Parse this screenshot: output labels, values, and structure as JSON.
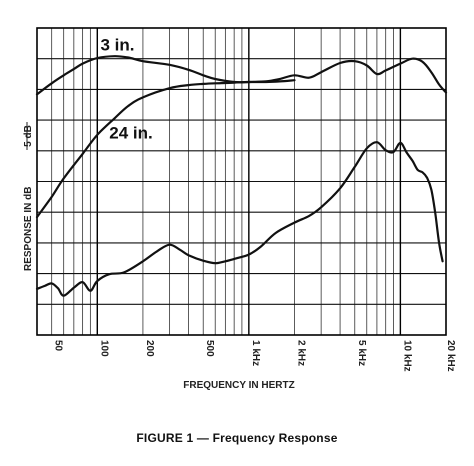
{
  "caption": "FIGURE 1 — Frequency Response",
  "chart_data": {
    "type": "line",
    "xlabel": "FREQUENCY IN HERTZ",
    "ylabel": "RESPONSE IN dB",
    "scale_label": "5 dB",
    "x_scale": "log",
    "xlim": [
      40,
      20000
    ],
    "ylim": [
      -50,
      0
    ],
    "grid": true,
    "x_ticks": [
      {
        "value": 50,
        "label": "50"
      },
      {
        "value": 100,
        "label": "100"
      },
      {
        "value": 200,
        "label": "200"
      },
      {
        "value": 500,
        "label": "500"
      },
      {
        "value": 1000,
        "label": "1 kHz"
      },
      {
        "value": 2000,
        "label": "2 kHz"
      },
      {
        "value": 5000,
        "label": "5 kHz"
      },
      {
        "value": 10000,
        "label": "10 kHz"
      },
      {
        "value": 20000,
        "label": "20 kHz"
      }
    ],
    "series": [
      {
        "name": "3 in.",
        "x": [
          40,
          50,
          60,
          70,
          80,
          100,
          130,
          160,
          200,
          300,
          400,
          500,
          600,
          800,
          1000,
          1300,
          1600,
          2000,
          2500,
          3000,
          4000,
          5000,
          6000,
          7000,
          8000,
          10000,
          12000,
          14000,
          16000,
          18000,
          20000
        ],
        "y": [
          -10.8,
          -9.0,
          -7.7,
          -6.7,
          -5.8,
          -4.9,
          -4.6,
          -4.8,
          -5.4,
          -6.0,
          -6.8,
          -7.7,
          -8.3,
          -8.8,
          -8.8,
          -8.7,
          -8.3,
          -7.7,
          -8.1,
          -7.2,
          -5.7,
          -5.4,
          -6.1,
          -7.5,
          -6.9,
          -5.8,
          -5.0,
          -5.5,
          -7.2,
          -9.2,
          -10.5
        ]
      },
      {
        "name": "24 in.",
        "x": [
          40,
          50,
          60,
          80,
          100,
          130,
          160,
          200,
          300,
          400,
          500,
          600,
          800,
          1000,
          1300,
          1600,
          2000
        ],
        "y": [
          -30.8,
          -27.5,
          -24.5,
          -20.5,
          -17.4,
          -14.7,
          -12.7,
          -11.3,
          -9.8,
          -9.3,
          -9.1,
          -9.0,
          -8.9,
          -8.8,
          -8.8,
          -8.7,
          -8.5
        ]
      },
      {
        "name": "",
        "x": [
          40,
          45,
          50,
          55,
          60,
          70,
          80,
          90,
          100,
          120,
          150,
          200,
          250,
          300,
          350,
          400,
          500,
          600,
          700,
          800,
          1000,
          1200,
          1500,
          2000,
          2500,
          3000,
          4000,
          5000,
          6000,
          7000,
          8000,
          9000,
          10000,
          11000,
          12000,
          13000,
          14000,
          15000,
          16000,
          17000,
          18000,
          19000
        ],
        "y": [
          -42.5,
          -42.0,
          -41.6,
          -42.4,
          -43.6,
          -42.3,
          -41.4,
          -42.8,
          -41.2,
          -40.1,
          -39.8,
          -38.0,
          -36.3,
          -35.3,
          -36.1,
          -37.0,
          -37.9,
          -38.3,
          -38.0,
          -37.6,
          -36.9,
          -35.6,
          -33.4,
          -31.7,
          -30.6,
          -29.2,
          -26.1,
          -22.6,
          -19.6,
          -18.6,
          -19.9,
          -20.2,
          -18.7,
          -20.3,
          -21.6,
          -23.1,
          -23.5,
          -24.4,
          -26.3,
          -30.2,
          -35.0,
          -38.0
        ]
      }
    ],
    "annotations": [
      {
        "text": "3 in.",
        "x": 105,
        "y": -3.7
      },
      {
        "text": "24 in.",
        "x": 120,
        "y": -18.0
      }
    ]
  }
}
